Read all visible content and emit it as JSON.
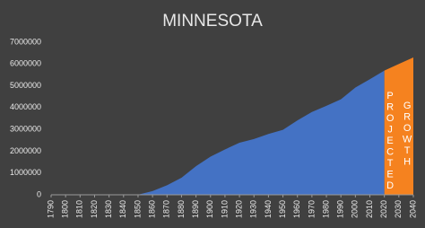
{
  "chart_data": {
    "type": "area",
    "title": "MINNESOTA",
    "x": [
      1790,
      1800,
      1810,
      1820,
      1830,
      1840,
      1850,
      1860,
      1870,
      1880,
      1890,
      1900,
      1910,
      1920,
      1930,
      1940,
      1950,
      1960,
      1970,
      1980,
      1990,
      2000,
      2010,
      2020,
      2030,
      2040
    ],
    "series": [
      {
        "color": "#4472c4",
        "values": [
          0,
          0,
          0,
          0,
          0,
          0,
          6000,
          172000,
          440000,
          780000,
          1310000,
          1750000,
          2080000,
          2390000,
          2560000,
          2790000,
          2980000,
          3410000,
          3800000,
          4080000,
          4380000,
          4920000,
          5300000,
          5700000,
          null,
          null
        ]
      },
      {
        "color": "#f5821f",
        "values": [
          null,
          null,
          null,
          null,
          null,
          null,
          null,
          null,
          null,
          null,
          null,
          null,
          null,
          null,
          null,
          null,
          null,
          null,
          null,
          null,
          null,
          null,
          null,
          5700000,
          6000000,
          6300000
        ]
      }
    ],
    "annotations": [
      "PROJECTED",
      "GROWTH"
    ],
    "xlim": [
      1790,
      2040
    ],
    "xticks": [
      1790,
      1800,
      1810,
      1820,
      1830,
      1840,
      1850,
      1860,
      1870,
      1880,
      1890,
      1900,
      1910,
      1920,
      1930,
      1940,
      1950,
      1960,
      1970,
      1980,
      1990,
      2000,
      2010,
      2020,
      2030,
      2040
    ],
    "ylim": [
      0,
      7000000
    ],
    "yticks": [
      0,
      1000000,
      2000000,
      3000000,
      4000000,
      5000000,
      6000000,
      7000000
    ]
  }
}
